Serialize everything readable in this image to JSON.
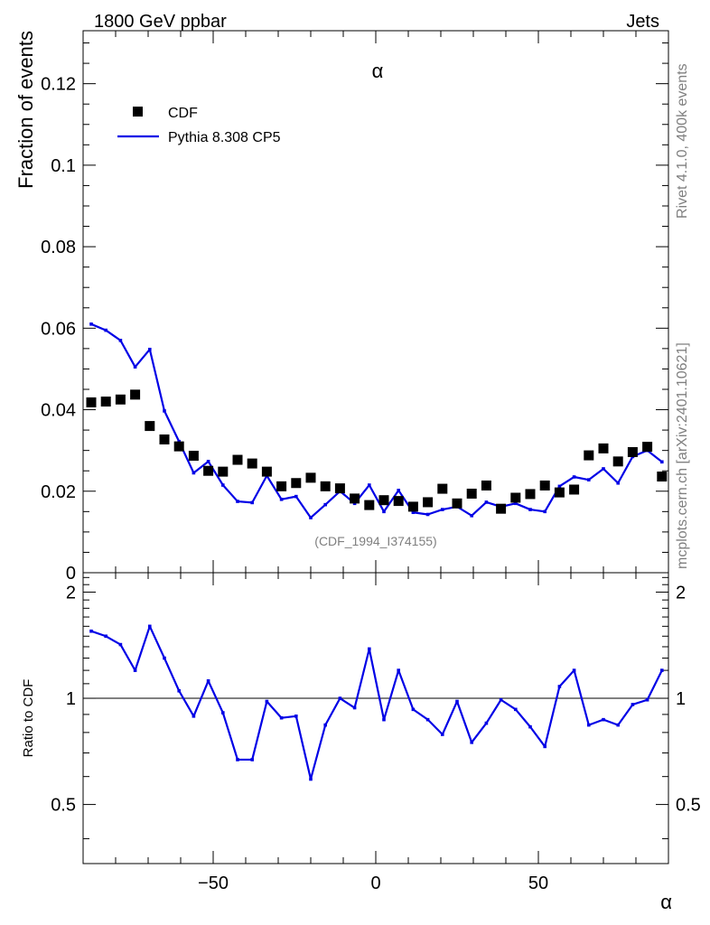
{
  "header": {
    "left": "1800 GeV ppbar",
    "right": "Jets",
    "plot_title": "α",
    "ref_code": "(CDF_1994_I374155)",
    "side_top": "Rivet 4.1.0,  400k events",
    "side_bottom": "mcplots.cern.ch [arXiv:2401.10621]"
  },
  "colors": {
    "data": "#000000",
    "mc": "#0000e6",
    "ref_line": "#000000"
  },
  "chart_data": [
    {
      "type": "scatter+line",
      "title": "α",
      "ylabel": "Fraction of events",
      "xlabel": "α",
      "xlim": [
        -90,
        90
      ],
      "ylim": [
        0,
        0.133
      ],
      "y_ticks": [
        0,
        0.02,
        0.04,
        0.06,
        0.08,
        0.1,
        0.12
      ],
      "y_tick_labels": [
        "0",
        "0.02",
        "0.04",
        "0.06",
        "0.08",
        "0.1",
        "0.12"
      ],
      "legend": {
        "position": "top-left",
        "entries": [
          "CDF",
          "Pythia 8.308 CP5"
        ]
      },
      "x": [
        -87.5,
        -83,
        -78.5,
        -74,
        -69.5,
        -65,
        -60.5,
        -56,
        -51.5,
        -47,
        -42.5,
        -38,
        -33.5,
        -29,
        -24.5,
        -20,
        -15.5,
        -11,
        -6.5,
        -2,
        2.5,
        7,
        11.5,
        16,
        20.5,
        25,
        29.5,
        34,
        38.5,
        43,
        47.5,
        52,
        56.5,
        61,
        65.5,
        70,
        74.5,
        79,
        83.5,
        88
      ],
      "series": [
        {
          "name": "CDF",
          "values": [
            0.0418,
            0.042,
            0.0425,
            0.0437,
            0.036,
            0.0327,
            0.031,
            0.0287,
            0.025,
            0.0248,
            0.0277,
            0.0268,
            0.0248,
            0.0212,
            0.022,
            0.0233,
            0.0212,
            0.0207,
            0.0182,
            0.0166,
            0.0178,
            0.0176,
            0.0162,
            0.0173,
            0.0206,
            0.017,
            0.0194,
            0.0214,
            0.0157,
            0.0184,
            0.0193,
            0.0214,
            0.0197,
            0.0204,
            0.0288,
            0.0305,
            0.0273,
            0.0296,
            0.0309,
            0.0236
          ]
        },
        {
          "name": "Pythia 8.308 CP5",
          "values": [
            0.061,
            0.0595,
            0.057,
            0.0505,
            0.0548,
            0.0397,
            0.0322,
            0.0245,
            0.0273,
            0.0215,
            0.0175,
            0.0172,
            0.0238,
            0.018,
            0.0187,
            0.0135,
            0.0167,
            0.02,
            0.017,
            0.0215,
            0.015,
            0.0202,
            0.0148,
            0.0143,
            0.0155,
            0.0162,
            0.014,
            0.0173,
            0.0162,
            0.017,
            0.0155,
            0.015,
            0.0212,
            0.0235,
            0.0228,
            0.0255,
            0.022,
            0.0285,
            0.03,
            0.0272
          ]
        }
      ]
    },
    {
      "type": "line",
      "ylabel": "Ratio to CDF",
      "xlabel": "α",
      "xlim": [
        -90,
        90
      ],
      "ylim": [
        0.34,
        2.27
      ],
      "x_ticks": [
        -50,
        0,
        50
      ],
      "x_tick_labels": [
        "−50",
        "0",
        "50"
      ],
      "y_ticks": [
        0.5,
        1,
        2
      ],
      "y_tick_labels": [
        "0.5",
        "1",
        "2"
      ],
      "reference_line": 1,
      "x": [
        -87.5,
        -83,
        -78.5,
        -74,
        -69.5,
        -65,
        -60.5,
        -56,
        -51.5,
        -47,
        -42.5,
        -38,
        -33.5,
        -29,
        -24.5,
        -20,
        -15.5,
        -11,
        -6.5,
        -2,
        2.5,
        7,
        11.5,
        16,
        20.5,
        25,
        29.5,
        34,
        38.5,
        43,
        47.5,
        52,
        56.5,
        61,
        65.5,
        70,
        74.5,
        79,
        83.5,
        88
      ],
      "series": [
        {
          "name": "Pythia 8.308 CP5 / CDF",
          "values": [
            1.55,
            1.5,
            1.42,
            1.2,
            1.6,
            1.3,
            1.05,
            0.89,
            1.12,
            0.91,
            0.67,
            0.67,
            0.98,
            0.88,
            0.89,
            0.59,
            0.84,
            1.0,
            0.94,
            1.38,
            0.87,
            1.2,
            0.93,
            0.87,
            0.79,
            0.98,
            0.75,
            0.85,
            0.99,
            0.93,
            0.83,
            0.73,
            1.08,
            1.2,
            0.84,
            0.87,
            0.84,
            0.96,
            0.99,
            1.2
          ]
        }
      ]
    }
  ]
}
